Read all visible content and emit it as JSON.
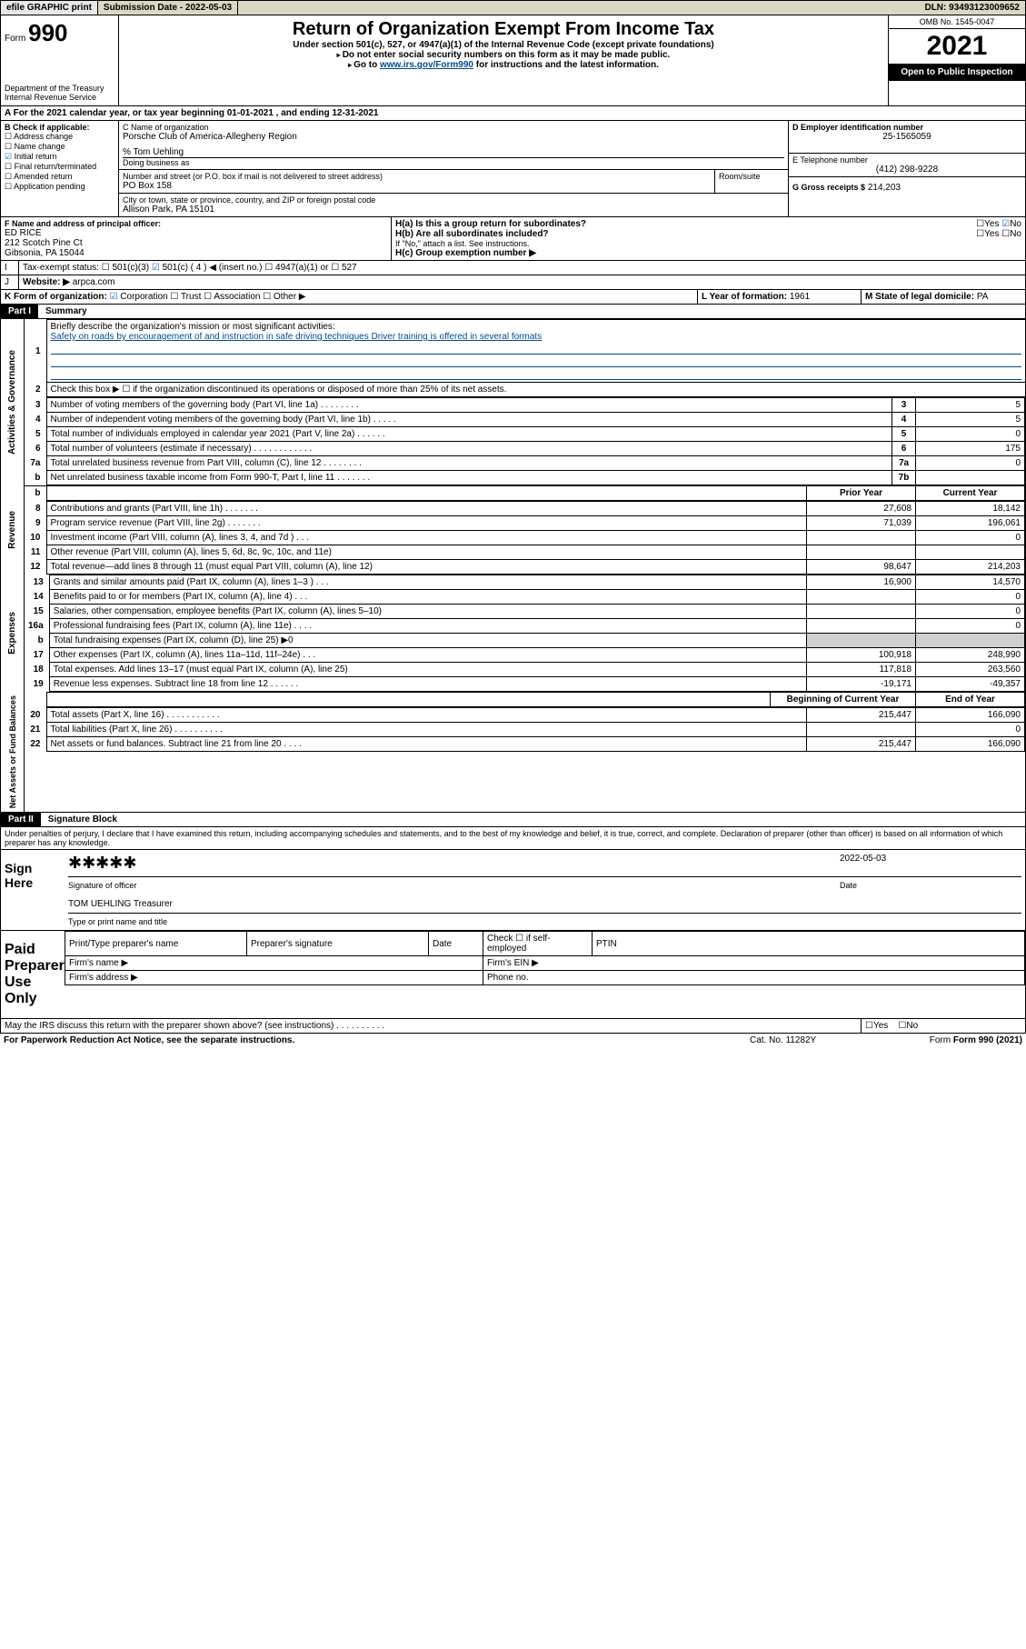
{
  "topbar": {
    "efile": "efile GRAPHIC print",
    "submission": "Submission Date - 2022-05-03",
    "dln": "DLN: 93493123009652"
  },
  "header": {
    "form_prefix": "Form",
    "form_no": "990",
    "dept": "Department of the Treasury",
    "irs": "Internal Revenue Service",
    "title": "Return of Organization Exempt From Income Tax",
    "subtitle": "Under section 501(c), 527, or 4947(a)(1) of the Internal Revenue Code (except private foundations)",
    "note1": "Do not enter social security numbers on this form as it may be made public.",
    "note2_prefix": "Go to ",
    "note2_link": "www.irs.gov/Form990",
    "note2_suffix": " for instructions and the latest information.",
    "omb": "OMB No. 1545-0047",
    "year": "2021",
    "open": "Open to Public Inspection"
  },
  "period": {
    "label_a": "A For the 2021 calendar year, or tax year beginning ",
    "begin": "01-01-2021",
    "mid": " , and ending ",
    "end": "12-31-2021"
  },
  "boxB": {
    "title": "B Check if applicable:",
    "addr": "Address change",
    "name": "Name change",
    "initial": "Initial return",
    "final": "Final return/terminated",
    "amended": "Amended return",
    "app": "Application pending"
  },
  "boxC": {
    "label": "C Name of organization",
    "name": "Porsche Club of America-Allegheny Region",
    "care": "% Tom Uehling",
    "dba_label": "Doing business as",
    "street_label": "Number and street (or P.O. box if mail is not delivered to street address)",
    "room_label": "Room/suite",
    "street": "PO Box 158",
    "city_label": "City or town, state or province, country, and ZIP or foreign postal code",
    "city": "Allison Park, PA  15101"
  },
  "boxD": {
    "label": "D Employer identification number",
    "val": "25-1565059"
  },
  "boxE": {
    "label": "E Telephone number",
    "val": "(412) 298-9228"
  },
  "boxG": {
    "label": "G Gross receipts $",
    "val": "214,203"
  },
  "boxF": {
    "label": "F Name and address of principal officer:",
    "name": "ED RICE",
    "addr1": "212 Scotch Pine Ct",
    "addr2": "Gibsonia, PA  15044"
  },
  "boxH": {
    "a": "H(a)  Is this a group return for subordinates?",
    "b": "H(b)  Are all subordinates included?",
    "b_note": "If \"No,\" attach a list. See instructions.",
    "c": "H(c)  Group exemption number ▶",
    "yes": "Yes",
    "no": "No"
  },
  "taxI": {
    "label": "Tax-exempt status:",
    "c3": "501(c)(3)",
    "c": "501(c) ( 4 ) ◀ (insert no.)",
    "a1": "4947(a)(1) or",
    "s527": "527"
  },
  "boxJ": {
    "label": "Website: ▶",
    "val": "arpca.com"
  },
  "boxK": {
    "label": "K Form of organization:",
    "corp": "Corporation",
    "trust": "Trust",
    "assoc": "Association",
    "other": "Other ▶"
  },
  "boxL": {
    "label": "L Year of formation:",
    "val": "1961"
  },
  "boxM": {
    "label": "M State of legal domicile:",
    "val": "PA"
  },
  "part1": {
    "hdr": "Part I",
    "title": "Summary",
    "q1": "Briefly describe the organization's mission or most significant activities:",
    "mission": "Safety on roads by encouragement of and instruction in safe driving techniques Driver training is offered in several formats",
    "q2": "Check this box ▶ ☐  if the organization discontinued its operations or disposed of more than 25% of its net assets.",
    "rows_a": [
      {
        "n": "3",
        "t": "Number of voting members of the governing body (Part VI, line 1a)  .     .     .     .     .     .     .     .",
        "i": "3",
        "v": "5"
      },
      {
        "n": "4",
        "t": "Number of independent voting members of the governing body (Part VI, line 1b)  .     .     .     .     .",
        "i": "4",
        "v": "5"
      },
      {
        "n": "5",
        "t": "Total number of individuals employed in calendar year 2021 (Part V, line 2a)  .     .     .     .     .     .",
        "i": "5",
        "v": "0"
      },
      {
        "n": "6",
        "t": "Total number of volunteers (estimate if necessary)  .     .     .     .     .     .     .     .     .     .     .     .",
        "i": "6",
        "v": "175"
      },
      {
        "n": "7a",
        "t": "Total unrelated business revenue from Part VIII, column (C), line 12  .     .     .     .     .     .     .     .",
        "i": "7a",
        "v": "0"
      },
      {
        "n": "b",
        "t": "Net unrelated business taxable income from Form 990-T, Part I, line 11  .     .     .     .     .     .     .",
        "i": "7b",
        "v": ""
      }
    ],
    "prior": "Prior Year",
    "current": "Current Year",
    "rev": [
      {
        "n": "8",
        "t": "Contributions and grants (Part VIII, line 1h)  .     .     .     .     .     .     .",
        "p": "27,608",
        "c": "18,142"
      },
      {
        "n": "9",
        "t": "Program service revenue (Part VIII, line 2g)  .     .     .     .     .     .     .",
        "p": "71,039",
        "c": "196,061"
      },
      {
        "n": "10",
        "t": "Investment income (Part VIII, column (A), lines 3, 4, and 7d )  .     .     .",
        "p": "",
        "c": "0"
      },
      {
        "n": "11",
        "t": "Other revenue (Part VIII, column (A), lines 5, 6d, 8c, 9c, 10c, and 11e)",
        "p": "",
        "c": ""
      },
      {
        "n": "12",
        "t": "Total revenue—add lines 8 through 11 (must equal Part VIII, column (A), line 12)",
        "p": "98,647",
        "c": "214,203"
      }
    ],
    "exp": [
      {
        "n": "13",
        "t": "Grants and similar amounts paid (Part IX, column (A), lines 1–3 )  .     .     .",
        "p": "16,900",
        "c": "14,570"
      },
      {
        "n": "14",
        "t": "Benefits paid to or for members (Part IX, column (A), line 4)  .     .     .",
        "p": "",
        "c": "0"
      },
      {
        "n": "15",
        "t": "Salaries, other compensation, employee benefits (Part IX, column (A), lines 5–10)",
        "p": "",
        "c": "0"
      },
      {
        "n": "16a",
        "t": "Professional fundraising fees (Part IX, column (A), line 11e)  .     .     .     .",
        "p": "",
        "c": "0"
      },
      {
        "n": "b",
        "t": "Total fundraising expenses (Part IX, column (D), line 25) ▶0",
        "p": "shade",
        "c": "shade"
      },
      {
        "n": "17",
        "t": "Other expenses (Part IX, column (A), lines 11a–11d, 11f–24e)  .     .     .",
        "p": "100,918",
        "c": "248,990"
      },
      {
        "n": "18",
        "t": "Total expenses. Add lines 13–17 (must equal Part IX, column (A), line 25)",
        "p": "117,818",
        "c": "263,560"
      },
      {
        "n": "19",
        "t": "Revenue less expenses. Subtract line 18 from line 12  .     .     .     .     .     .",
        "p": "-19,171",
        "c": "-49,357"
      }
    ],
    "boy": "Beginning of Current Year",
    "eoy": "End of Year",
    "net": [
      {
        "n": "20",
        "t": "Total assets (Part X, line 16)  .     .     .     .     .     .     .     .     .     .     .",
        "p": "215,447",
        "c": "166,090"
      },
      {
        "n": "21",
        "t": "Total liabilities (Part X, line 26)  .     .     .     .     .     .     .     .     .     .",
        "p": "",
        "c": "0"
      },
      {
        "n": "22",
        "t": "Net assets or fund balances. Subtract line 21 from line 20  .     .     .     .",
        "p": "215,447",
        "c": "166,090"
      }
    ],
    "band_a": "Activities & Governance",
    "band_r": "Revenue",
    "band_e": "Expenses",
    "band_n": "Net Assets or Fund Balances"
  },
  "part2": {
    "hdr": "Part II",
    "title": "Signature Block",
    "decl": "Under penalties of perjury, I declare that I have examined this return, including accompanying schedules and statements, and to the best of my knowledge and belief, it is true, correct, and complete. Declaration of preparer (other than officer) is based on all information of which preparer has any knowledge.",
    "sign_here": "Sign Here",
    "sig_officer": "Signature of officer",
    "date": "Date",
    "date_val": "2022-05-03",
    "name_title": "TOM UEHLING  Treasurer",
    "name_title_label": "Type or print name and title",
    "paid": "Paid Preparer Use Only",
    "prep_name": "Print/Type preparer's name",
    "prep_sig": "Preparer's signature",
    "prep_date": "Date",
    "check_self": "Check ☐ if self-employed",
    "ptin": "PTIN",
    "firm_name": "Firm's name  ▶",
    "firm_ein": "Firm's EIN ▶",
    "firm_addr": "Firm's address ▶",
    "phone": "Phone no."
  },
  "footer": {
    "discuss": "May the IRS discuss this return with the preparer shown above? (see instructions)  .     .     .     .     .     .     .     .     .     .",
    "yes": "Yes",
    "no": "No",
    "pra": "For Paperwork Reduction Act Notice, see the separate instructions.",
    "cat": "Cat. No. 11282Y",
    "form": "Form 990 (2021)"
  }
}
